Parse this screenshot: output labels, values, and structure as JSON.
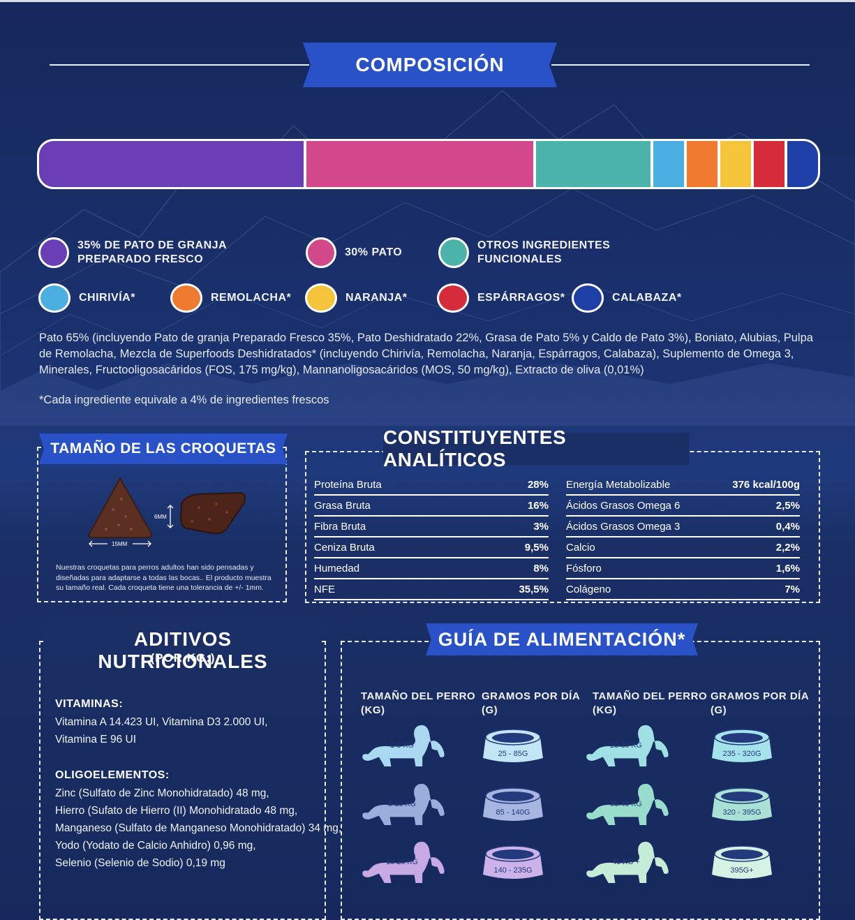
{
  "composition": {
    "title": "COMPOSICIÓN",
    "segments": [
      {
        "color": "#6a3fb6",
        "share": 34.5
      },
      {
        "color": "#d2488a",
        "share": 29.6
      },
      {
        "color": "#4bb3aa",
        "share": 14.9
      },
      {
        "color": "#4aaee0",
        "share": 4.0
      },
      {
        "color": "#ef7a30",
        "share": 4.0
      },
      {
        "color": "#f5c43a",
        "share": 4.0
      },
      {
        "color": "#d52b3a",
        "share": 4.0
      },
      {
        "color": "#1e3fa6",
        "share": 4.0
      }
    ],
    "legend": [
      {
        "label": "35% DE PATO DE GRANJA\nPREPARADO FRESCO",
        "color": "#6a3fb6"
      },
      {
        "label": "30% PATO",
        "color": "#d2488a"
      },
      {
        "label": "OTROS INGREDIENTES\nFUNCIONALES",
        "color": "#4bb3aa"
      },
      {
        "label": "CHIRIVÍA*",
        "color": "#4aaee0"
      },
      {
        "label": "REMOLACHA*",
        "color": "#ef7a30"
      },
      {
        "label": "NARANJA*",
        "color": "#f5c43a"
      },
      {
        "label": "ESPÁRRAGOS*",
        "color": "#d52b3a"
      },
      {
        "label": "CALABAZA*",
        "color": "#1e3fa6"
      }
    ],
    "ingredients": "Pato 65% (incluyendo Pato de granja Preparado Fresco 35%, Pato Deshidratado 22%, Grasa de Pato 5% y Caldo de Pato 3%), Boniato, Alubias, Pulpa de Remolacha, Mezcla de Superfoods Deshidratados* (incluyendo Chirivía, Remolacha, Naranja, Espárragos, Calabaza), Suplemento de Omega 3, Minerales, Fructooligosacáridos (FOS, 175 mg/kg), Mannanoligosacáridos (MOS, 50 mg/kg), Extracto de oliva (0,01%)",
    "footnote": "*Cada ingrediente equivale a 4% de ingredientes frescos"
  },
  "kibble": {
    "title": "TAMAÑO DE LAS CROQUETAS",
    "height_label": "6MM",
    "width_label": "15MM",
    "caption": "Nuestras croquetas para perros adultos han sido pensadas y diseñadas para adaptarse a todas las bocas.. El producto muestra su tamaño real. Cada croqueta tiene una tolerancia de +/- 1mm."
  },
  "analytics": {
    "title": "CONSTITUYENTES ANALÍTICOS",
    "left": [
      {
        "name": "Proteína Bruta",
        "value": "28%"
      },
      {
        "name": "Grasa Bruta",
        "value": "16%"
      },
      {
        "name": "Fibra Bruta",
        "value": "3%"
      },
      {
        "name": "Ceniza Bruta",
        "value": "9,5%"
      },
      {
        "name": "Humedad",
        "value": "8%"
      },
      {
        "name": "NFE",
        "value": "35,5%"
      }
    ],
    "right": [
      {
        "name": "Energía Metabolizable",
        "value": "376 kcal/100g"
      },
      {
        "name": "Ácidos Grasos Omega 6",
        "value": "2,5%"
      },
      {
        "name": "Ácidos Grasos Omega 3",
        "value": "0,4%"
      },
      {
        "name": "Calcio",
        "value": "2,2%"
      },
      {
        "name": "Fósforo",
        "value": "1,6%"
      },
      {
        "name": "Colágeno",
        "value": "7%"
      }
    ]
  },
  "additives": {
    "title": "ADITIVOS NUTRICIONALES",
    "subtitle": "(POR KG:)",
    "vitamins_title": "VITAMINAS:",
    "vitamins": [
      "Vitamina A 14.423 UI, Vitamina D3 2.000 UI,",
      "Vitamina E 96 UI"
    ],
    "trace_title": "OLIGOELEMENTOS:",
    "trace": [
      "Zinc (Sulfato de Zinc Monohidratado) 48 mg,",
      "Hierro (Sufato de Hierro (II) Monohidratado 48 mg,",
      "Manganeso (Sulfato de Manganeso Monohidratado) 34 mg,",
      "Yodo (Yodato de Calcio Anhidro) 0,96 mg,",
      "Selenio (Selenio de Sodio) 0,19 mg"
    ]
  },
  "feeding": {
    "title": "GUÍA DE ALIMENTACIÓN*",
    "col_size": "TAMAÑO DEL PERRO\n(KG)",
    "col_grams": "GRAMOS POR DÍA\n(G)",
    "rows": [
      {
        "size": "1-5 KG",
        "grams": "25 - 85G",
        "dog_color": "#a9d8f0",
        "bowl_color": "#c2e6f6"
      },
      {
        "size": "5-10 KG",
        "grams": "85 - 140G",
        "dog_color": "#9aaedb",
        "bowl_color": "#a7b6e0"
      },
      {
        "size": "10-20 KG",
        "grams": "140 - 235G",
        "dog_color": "#c7a9e3",
        "bowl_color": "#cbb2e8"
      },
      {
        "size": "20-30 KG",
        "grams": "235 - 320G",
        "dog_color": "#9fe0e4",
        "bowl_color": "#a5e3ec"
      },
      {
        "size": "30-40 KG",
        "grams": "320 - 395G",
        "dog_color": "#98dccb",
        "bowl_color": "#a8e2d4"
      },
      {
        "size": "40 KG +",
        "grams": "395G+",
        "dog_color": "#c4ecd7",
        "bowl_color": "#d5f3e2"
      }
    ]
  }
}
